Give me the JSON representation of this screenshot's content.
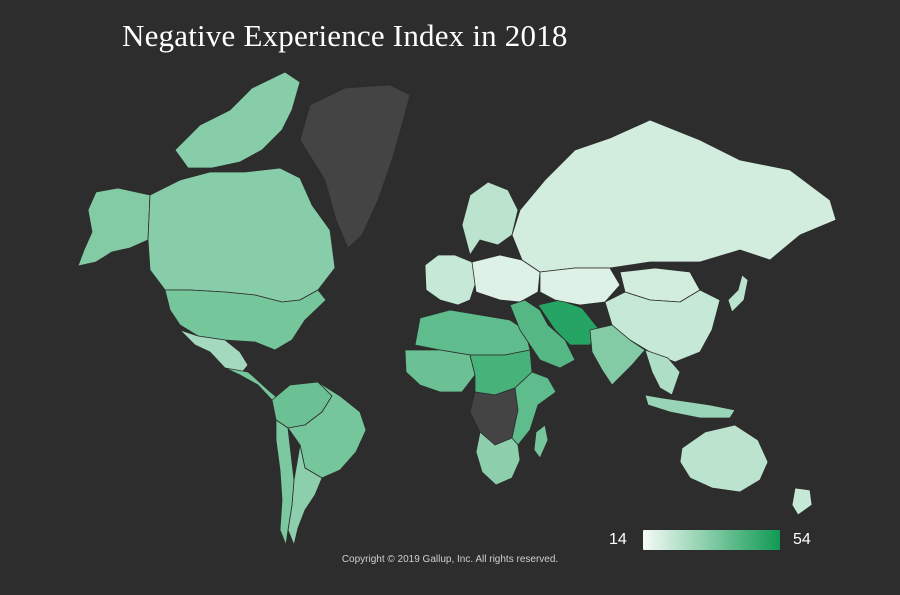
{
  "title": "Negative Experience Index in 2018",
  "legend": {
    "min_label": "14",
    "max_label": "54",
    "min": 14,
    "max": 54,
    "low_color": "#f4fbf7",
    "high_color": "#0f9a52"
  },
  "no_data_color": "#444444",
  "copyright": "Copyright © 2019 Gallup, Inc. All rights reserved.",
  "chart_data": {
    "type": "choropleth",
    "value_scale": [
      14,
      54
    ],
    "regions": [
      {
        "id": "alaska",
        "value": 34
      },
      {
        "id": "canada",
        "value": 33
      },
      {
        "id": "canada-arctic",
        "value": 33
      },
      {
        "id": "usa",
        "value": 36
      },
      {
        "id": "mexico",
        "value": 28
      },
      {
        "id": "central-america",
        "value": 36
      },
      {
        "id": "south-america-north",
        "value": 38
      },
      {
        "id": "brazil",
        "value": 36
      },
      {
        "id": "south-america-south",
        "value": 32
      },
      {
        "id": "chile",
        "value": 35
      },
      {
        "id": "greenland",
        "value": null
      },
      {
        "id": "europe-north",
        "value": 24
      },
      {
        "id": "europe-west",
        "value": 22
      },
      {
        "id": "europe-east",
        "value": 18
      },
      {
        "id": "russia",
        "value": 20
      },
      {
        "id": "north-africa",
        "value": 40
      },
      {
        "id": "west-africa",
        "value": 38
      },
      {
        "id": "sahel",
        "value": 44
      },
      {
        "id": "central-africa",
        "value": null
      },
      {
        "id": "east-africa",
        "value": 40
      },
      {
        "id": "southern-africa",
        "value": 32
      },
      {
        "id": "madagascar",
        "value": 36
      },
      {
        "id": "middle-east",
        "value": 42
      },
      {
        "id": "iran",
        "value": 50
      },
      {
        "id": "central-asia",
        "value": 18
      },
      {
        "id": "mongolia",
        "value": 20
      },
      {
        "id": "china",
        "value": 22
      },
      {
        "id": "south-asia",
        "value": 34
      },
      {
        "id": "southeast-asia",
        "value": 26
      },
      {
        "id": "japan",
        "value": 24
      },
      {
        "id": "indonesia",
        "value": 30
      },
      {
        "id": "australia",
        "value": 24
      },
      {
        "id": "new-zealand",
        "value": 22
      }
    ]
  }
}
